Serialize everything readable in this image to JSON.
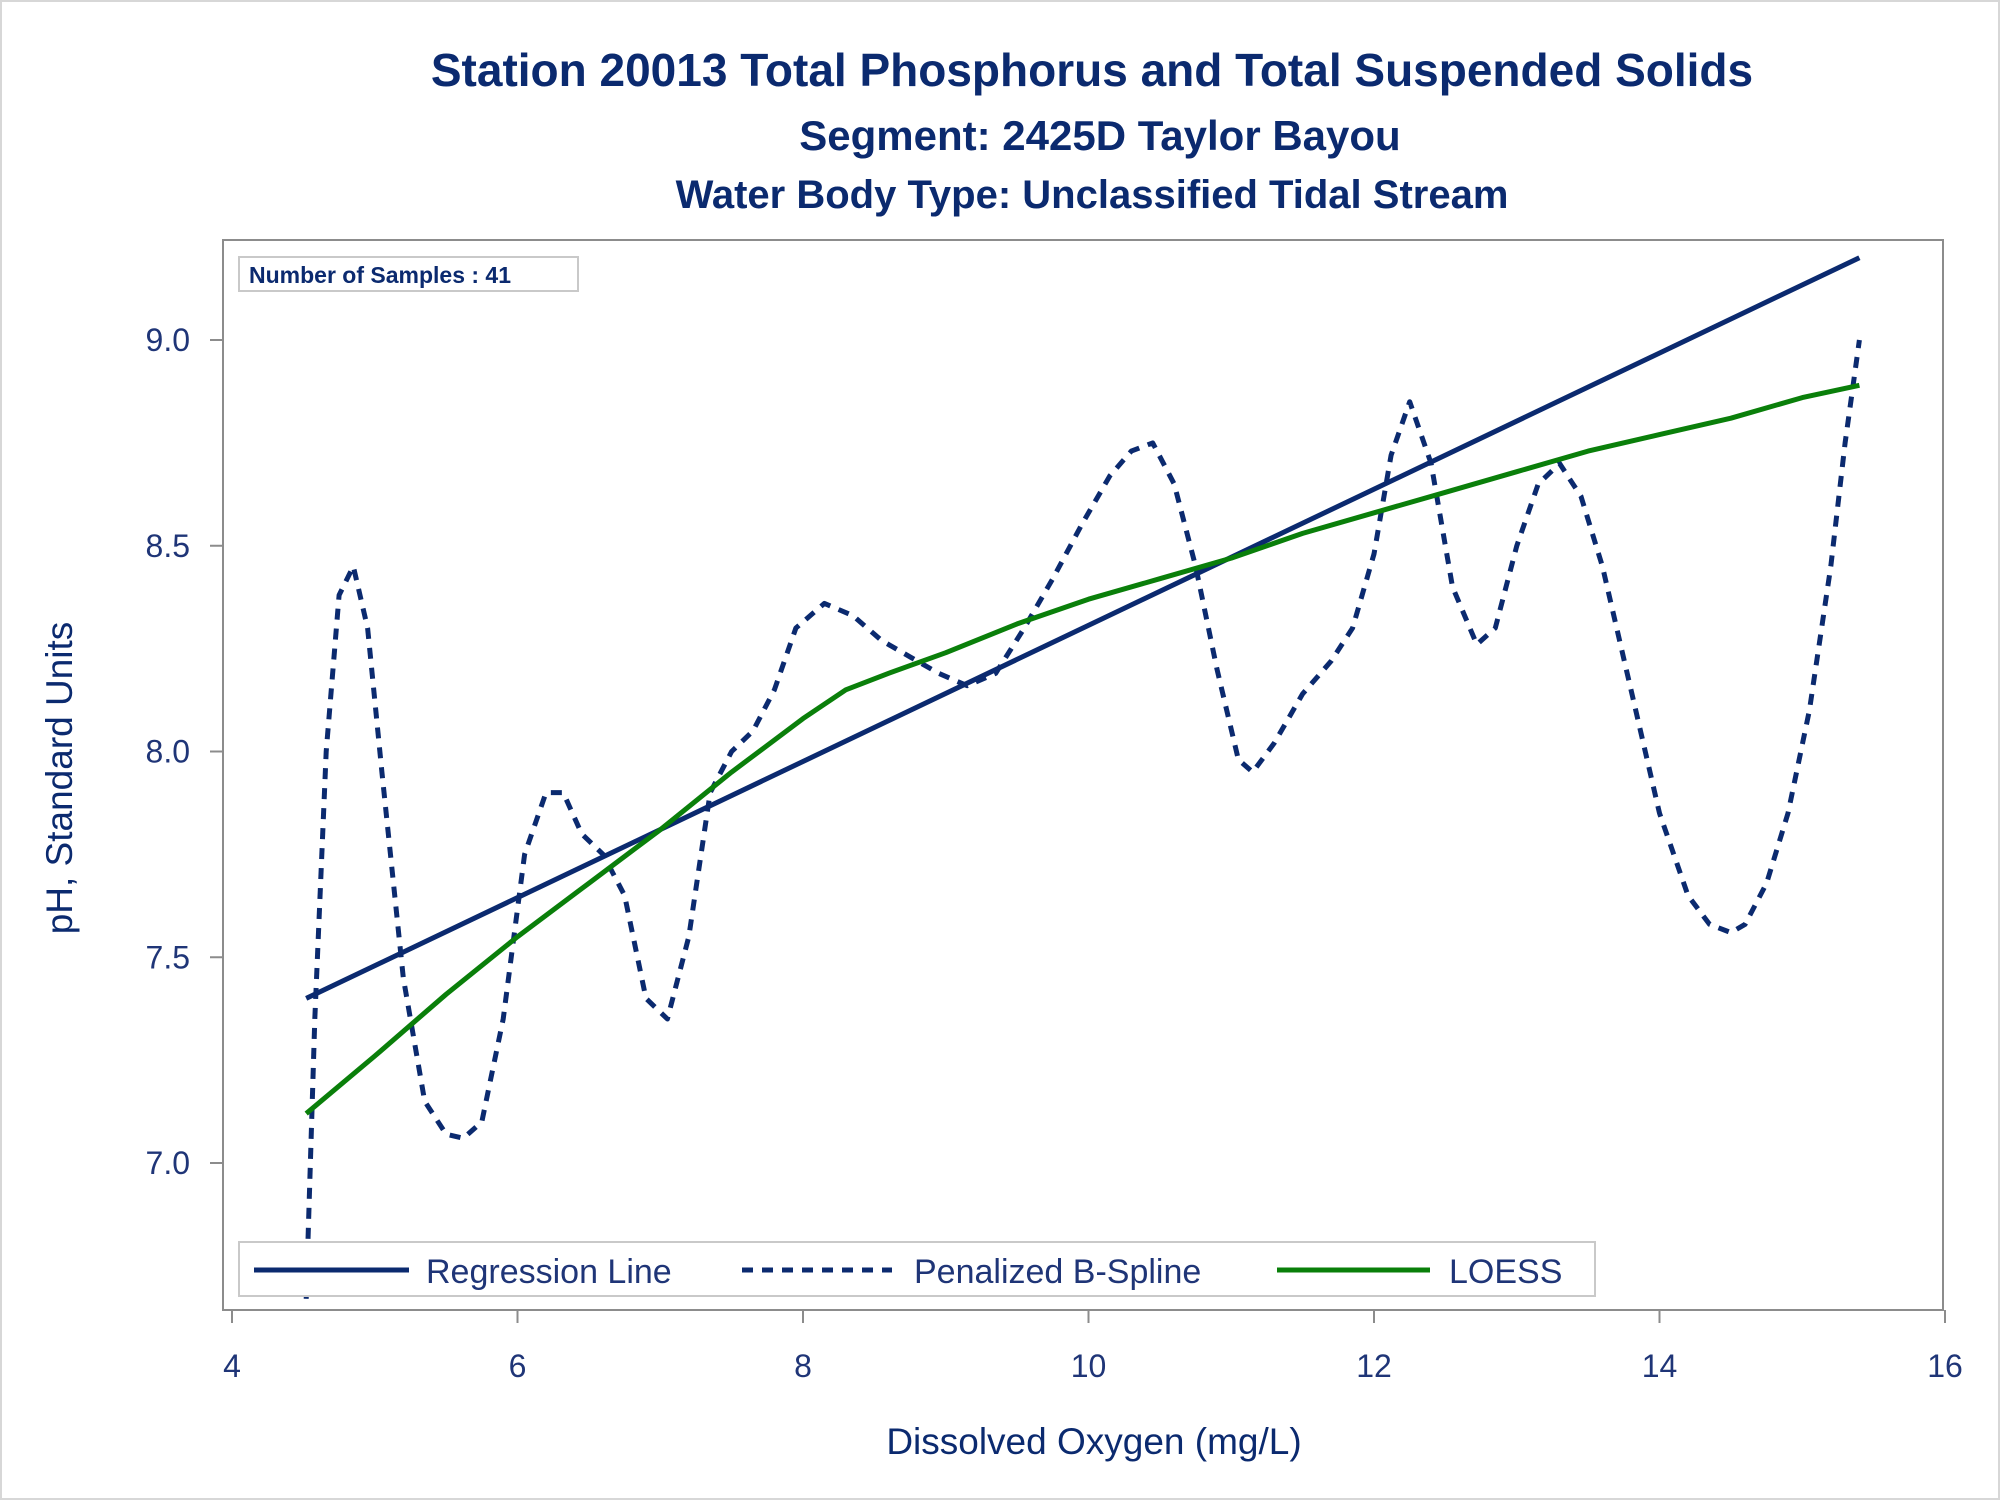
{
  "chart_data": {
    "type": "line",
    "title": "Station 20013  Total Phosphorus and Total Suspended Solids",
    "subtitle": "Segment: 2425D  Taylor Bayou",
    "subtitle2": "Water Body Type: Unclassified Tidal Stream",
    "xlabel": "Dissolved Oxygen (mg/L)",
    "ylabel": "pH, Standard Units",
    "xlim": [
      4,
      16
    ],
    "ylim": [
      6.65,
      9.22
    ],
    "xticks": [
      "4",
      "6",
      "8",
      "10",
      "12",
      "14",
      "16"
    ],
    "xtick_values": [
      4,
      6,
      8,
      10,
      12,
      14,
      16
    ],
    "yticks": [
      "7.0",
      "7.5",
      "8.0",
      "8.5",
      "9.0"
    ],
    "ytick_values": [
      7.0,
      7.5,
      8.0,
      8.5,
      9.0
    ],
    "grid": false,
    "inset": "Number of Samples : 41",
    "legend_position": "bottom-left inside",
    "series": [
      {
        "name": "Regression Line",
        "style": "solid",
        "color": "#0b2a6f",
        "x": [
          4.52,
          15.4
        ],
        "y": [
          7.4,
          9.2
        ]
      },
      {
        "name": "Penalized B-Spline",
        "style": "dashed",
        "color": "#0b2a6f",
        "x": [
          4.52,
          4.58,
          4.66,
          4.75,
          4.85,
          4.95,
          5.05,
          5.2,
          5.35,
          5.5,
          5.62,
          5.75,
          5.9,
          6.05,
          6.2,
          6.32,
          6.45,
          6.6,
          6.75,
          6.9,
          7.05,
          7.2,
          7.35,
          7.5,
          7.65,
          7.8,
          7.95,
          8.15,
          8.35,
          8.55,
          8.75,
          8.95,
          9.15,
          9.35,
          9.55,
          9.75,
          9.95,
          10.15,
          10.3,
          10.45,
          10.6,
          10.75,
          10.9,
          11.05,
          11.15,
          11.3,
          11.5,
          11.7,
          11.85,
          12.0,
          12.12,
          12.25,
          12.4,
          12.55,
          12.72,
          12.85,
          13.0,
          13.15,
          13.3,
          13.45,
          13.6,
          13.8,
          14.0,
          14.2,
          14.35,
          14.5,
          14.6,
          14.75,
          14.9,
          15.05,
          15.2,
          15.3,
          15.4
        ],
        "y": [
          6.67,
          7.35,
          8.0,
          8.38,
          8.45,
          8.3,
          7.95,
          7.45,
          7.15,
          7.07,
          7.06,
          7.1,
          7.35,
          7.75,
          7.9,
          7.9,
          7.8,
          7.75,
          7.65,
          7.4,
          7.35,
          7.55,
          7.9,
          8.0,
          8.05,
          8.15,
          8.3,
          8.36,
          8.33,
          8.27,
          8.23,
          8.19,
          8.16,
          8.19,
          8.3,
          8.42,
          8.55,
          8.67,
          8.73,
          8.75,
          8.65,
          8.45,
          8.2,
          7.98,
          7.95,
          8.02,
          8.14,
          8.22,
          8.3,
          8.48,
          8.72,
          8.85,
          8.7,
          8.4,
          8.26,
          8.3,
          8.5,
          8.65,
          8.7,
          8.62,
          8.45,
          8.15,
          7.85,
          7.65,
          7.58,
          7.56,
          7.58,
          7.68,
          7.85,
          8.1,
          8.45,
          8.75,
          9.0
        ]
      },
      {
        "name": "LOESS",
        "style": "solid",
        "color": "#0a7f0a",
        "x": [
          4.52,
          5.0,
          5.5,
          6.0,
          6.5,
          7.0,
          7.5,
          8.0,
          8.3,
          8.6,
          9.0,
          9.5,
          10.0,
          10.5,
          11.0,
          11.5,
          12.0,
          12.5,
          13.0,
          13.5,
          14.0,
          14.5,
          15.0,
          15.4
        ],
        "y": [
          7.12,
          7.26,
          7.41,
          7.55,
          7.68,
          7.81,
          7.95,
          8.08,
          8.15,
          8.19,
          8.24,
          8.31,
          8.37,
          8.42,
          8.47,
          8.53,
          8.58,
          8.63,
          8.68,
          8.73,
          8.77,
          8.81,
          8.86,
          8.89
        ]
      }
    ]
  }
}
